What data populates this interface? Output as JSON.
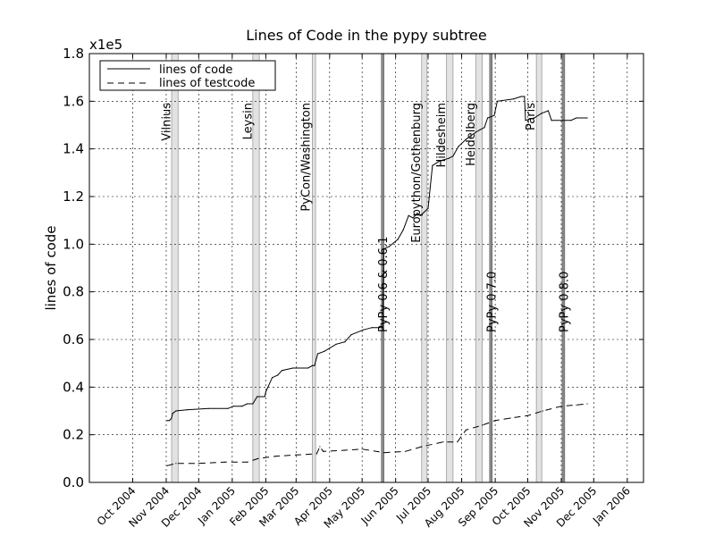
{
  "chart_data": {
    "type": "line",
    "title": "Lines of Code in the pypy subtree",
    "ylabel": "lines of code",
    "xlabel": "",
    "y_scale_label": "x1e5",
    "ylim": [
      0.0,
      1.8
    ],
    "yticks": [
      "0.0",
      "0.2",
      "0.4",
      "0.6",
      "0.8",
      "1.0",
      "1.2",
      "1.4",
      "1.6",
      "1.8"
    ],
    "xlim": [
      "2004-08-22",
      "2006-01-16"
    ],
    "xticks": [
      {
        "date": "2004-10-01",
        "label": "Oct 2004"
      },
      {
        "date": "2004-11-01",
        "label": "Nov 2004"
      },
      {
        "date": "2004-12-01",
        "label": "Dec 2004"
      },
      {
        "date": "2005-01-01",
        "label": "Jan 2005"
      },
      {
        "date": "2005-02-01",
        "label": "Feb 2005"
      },
      {
        "date": "2005-03-01",
        "label": "Mar 2005"
      },
      {
        "date": "2005-04-01",
        "label": "Apr 2005"
      },
      {
        "date": "2005-05-01",
        "label": "May 2005"
      },
      {
        "date": "2005-06-01",
        "label": "Jun 2005"
      },
      {
        "date": "2005-07-01",
        "label": "Jul 2005"
      },
      {
        "date": "2005-08-01",
        "label": "Aug 2005"
      },
      {
        "date": "2005-09-01",
        "label": "Sep 2005"
      },
      {
        "date": "2005-10-01",
        "label": "Oct 2005"
      },
      {
        "date": "2005-11-01",
        "label": "Nov 2005"
      },
      {
        "date": "2005-12-01",
        "label": "Dec 2005"
      },
      {
        "date": "2006-01-01",
        "label": "Jan 2006"
      }
    ],
    "grid": true,
    "legend_position": "top-left",
    "series": [
      {
        "name": "lines of code",
        "style": "solid",
        "color": "#000000",
        "points": [
          [
            "2004-11-02",
            0.26
          ],
          [
            "2004-11-04",
            0.26
          ],
          [
            "2004-11-06",
            0.27
          ],
          [
            "2004-11-07",
            0.29
          ],
          [
            "2004-11-10",
            0.3
          ],
          [
            "2004-11-20",
            0.305
          ],
          [
            "2004-12-10",
            0.31
          ],
          [
            "2004-12-28",
            0.31
          ],
          [
            "2005-01-02",
            0.32
          ],
          [
            "2005-01-10",
            0.32
          ],
          [
            "2005-01-15",
            0.33
          ],
          [
            "2005-01-20",
            0.33
          ],
          [
            "2005-01-24",
            0.36
          ],
          [
            "2005-01-31",
            0.36
          ],
          [
            "2005-02-01",
            0.38
          ],
          [
            "2005-02-03",
            0.4
          ],
          [
            "2005-02-07",
            0.44
          ],
          [
            "2005-02-12",
            0.45
          ],
          [
            "2005-02-16",
            0.47
          ],
          [
            "2005-02-26",
            0.48
          ],
          [
            "2005-03-12",
            0.48
          ],
          [
            "2005-03-16",
            0.49
          ],
          [
            "2005-03-18",
            0.49
          ],
          [
            "2005-03-21",
            0.54
          ],
          [
            "2005-03-27",
            0.55
          ],
          [
            "2005-04-07",
            0.58
          ],
          [
            "2005-04-15",
            0.59
          ],
          [
            "2005-04-21",
            0.62
          ],
          [
            "2005-05-02",
            0.64
          ],
          [
            "2005-05-10",
            0.65
          ],
          [
            "2005-05-20",
            0.65
          ],
          [
            "2005-05-21",
            0.98
          ],
          [
            "2005-05-26",
            0.99
          ],
          [
            "2005-06-03",
            1.02
          ],
          [
            "2005-06-08",
            1.06
          ],
          [
            "2005-06-13",
            1.12
          ],
          [
            "2005-06-17",
            1.11
          ],
          [
            "2005-06-21",
            1.13
          ],
          [
            "2005-06-24",
            1.12
          ],
          [
            "2005-07-01",
            1.15
          ],
          [
            "2005-07-03",
            1.24
          ],
          [
            "2005-07-05",
            1.33
          ],
          [
            "2005-07-12",
            1.35
          ],
          [
            "2005-07-20",
            1.36
          ],
          [
            "2005-07-24",
            1.37
          ],
          [
            "2005-07-29",
            1.41
          ],
          [
            "2005-08-05",
            1.44
          ],
          [
            "2005-08-14",
            1.47
          ],
          [
            "2005-08-18",
            1.48
          ],
          [
            "2005-08-22",
            1.49
          ],
          [
            "2005-08-25",
            1.53
          ],
          [
            "2005-08-31",
            1.54
          ],
          [
            "2005-09-03",
            1.6
          ],
          [
            "2005-09-18",
            1.61
          ],
          [
            "2005-09-25",
            1.62
          ],
          [
            "2005-09-28",
            1.62
          ],
          [
            "2005-09-29",
            1.52
          ],
          [
            "2005-10-07",
            1.53
          ],
          [
            "2005-10-14",
            1.55
          ],
          [
            "2005-10-20",
            1.56
          ],
          [
            "2005-10-23",
            1.52
          ],
          [
            "2005-11-10",
            1.52
          ],
          [
            "2005-11-15",
            1.53
          ],
          [
            "2005-11-25",
            1.53
          ]
        ]
      },
      {
        "name": "lines of testcode",
        "style": "dashed",
        "color": "#000000",
        "points": [
          [
            "2004-11-02",
            0.07
          ],
          [
            "2004-11-10",
            0.08
          ],
          [
            "2004-12-01",
            0.08
          ],
          [
            "2004-12-25",
            0.085
          ],
          [
            "2005-01-15",
            0.085
          ],
          [
            "2005-01-25",
            0.1
          ],
          [
            "2005-02-10",
            0.11
          ],
          [
            "2005-03-01",
            0.115
          ],
          [
            "2005-03-20",
            0.12
          ],
          [
            "2005-03-23",
            0.15
          ],
          [
            "2005-03-26",
            0.13
          ],
          [
            "2005-04-15",
            0.135
          ],
          [
            "2005-05-01",
            0.14
          ],
          [
            "2005-05-21",
            0.125
          ],
          [
            "2005-06-10",
            0.13
          ],
          [
            "2005-06-25",
            0.15
          ],
          [
            "2005-07-15",
            0.17
          ],
          [
            "2005-07-28",
            0.17
          ],
          [
            "2005-08-05",
            0.22
          ],
          [
            "2005-08-20",
            0.24
          ],
          [
            "2005-09-01",
            0.26
          ],
          [
            "2005-09-15",
            0.27
          ],
          [
            "2005-10-01",
            0.28
          ],
          [
            "2005-10-15",
            0.3
          ],
          [
            "2005-11-01",
            0.32
          ],
          [
            "2005-11-15",
            0.325
          ],
          [
            "2005-11-25",
            0.33
          ]
        ]
      }
    ],
    "events": [
      {
        "label": "Vilnius",
        "start": "2004-11-06",
        "end": "2004-11-12"
      },
      {
        "label": "Leysin",
        "start": "2005-01-20",
        "end": "2005-01-26"
      },
      {
        "label": "PyCon/Washington",
        "start": "2005-03-16",
        "end": "2005-03-19"
      },
      {
        "label": "Europython/Gothenburg",
        "start": "2005-06-25",
        "end": "2005-06-30"
      },
      {
        "label": "Hildesheim",
        "start": "2005-07-18",
        "end": "2005-07-24"
      },
      {
        "label": "Heidelberg",
        "start": "2005-08-14",
        "end": "2005-08-20"
      },
      {
        "label": "Paris",
        "start": "2005-10-09",
        "end": "2005-10-14"
      }
    ],
    "releases": [
      {
        "label": "PyPy 0.6 & 0.6.1",
        "date": "2005-05-20"
      },
      {
        "label": "PyPy 0.7.0",
        "date": "2005-08-28"
      },
      {
        "label": "PyPy 0.8.0",
        "date": "2005-11-03"
      }
    ]
  }
}
